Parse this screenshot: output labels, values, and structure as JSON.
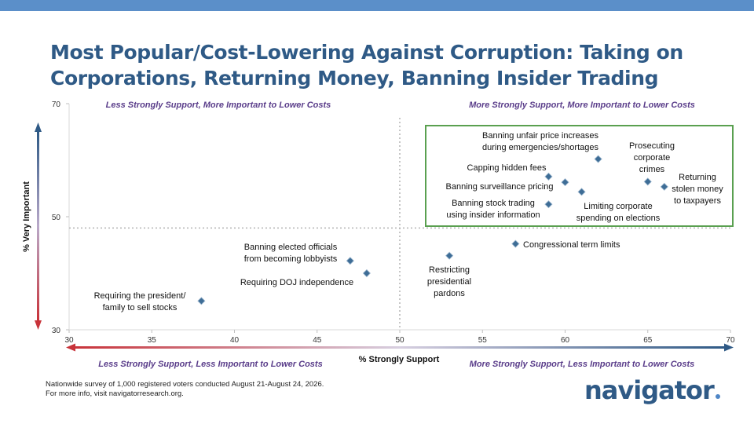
{
  "title_lines": [
    "Most Popular/Cost-Lowering Against Corruption: Taking on",
    "Corporations, Returning Money, Banning Insider Trading"
  ],
  "chart_data": {
    "type": "scatter",
    "xlabel": "% Strongly Support",
    "ylabel": "% Very Important",
    "xlim": [
      30,
      70
    ],
    "ylim": [
      30,
      70
    ],
    "xticks": [
      "30",
      "35",
      "40",
      "45",
      "50",
      "55",
      "60",
      "65",
      "70"
    ],
    "yticks": [
      "30",
      "50",
      "70"
    ],
    "reference_lines": {
      "x": 50,
      "y": 48
    },
    "quadrant_labels": {
      "top_left": "Less Strongly Support, More Important to Lower Costs",
      "top_right": "More Strongly Support, More Important to Lower Costs",
      "bottom_left": "Less Strongly Support, Less Important to Lower Costs",
      "bottom_right": "More Strongly Support, Less Important to Lower Costs"
    },
    "points": [
      {
        "label": [
          "Banning unfair price increases",
          "during emergencies/shortages"
        ],
        "x": 62,
        "y": 60.2
      },
      {
        "label": [
          "Prosecuting",
          "corporate",
          "crimes"
        ],
        "x": 65,
        "y": 56.2
      },
      {
        "label": [
          "Returning",
          "stolen money",
          "to taxpayers"
        ],
        "x": 66,
        "y": 55.3
      },
      {
        "label": [
          "Capping hidden fees"
        ],
        "x": 59,
        "y": 57.1
      },
      {
        "label": [
          "Banning surveillance pricing"
        ],
        "x": 60,
        "y": 56.1
      },
      {
        "label": [
          "Limiting corporate",
          "spending on elections"
        ],
        "x": 61,
        "y": 54.4
      },
      {
        "label": [
          "Banning stock trading",
          "using insider information"
        ],
        "x": 59,
        "y": 52.2
      },
      {
        "label": [
          "Congressional term limits"
        ],
        "x": 57,
        "y": 45.2
      },
      {
        "label": [
          "Restricting",
          "presidential",
          "pardons"
        ],
        "x": 53,
        "y": 43.1
      },
      {
        "label": [
          "Banning elected officials",
          "from becoming lobbyists"
        ],
        "x": 47,
        "y": 42.2
      },
      {
        "label": [
          "Requiring DOJ independence"
        ],
        "x": 48,
        "y": 40.0
      },
      {
        "label": [
          "Requiring the president/",
          "family to sell stocks"
        ],
        "x": 38,
        "y": 35.1
      }
    ],
    "colors": {
      "point": "#3e6d96",
      "highlight_box": "#5aa050",
      "top_labels": "#5a3d8a",
      "bottom_labels": "#5a3d8a",
      "arrow_top": "#2f5a86",
      "arrow_bottom": "#c8333a"
    }
  },
  "footnote_lines": [
    "Nationwide survey of 1,000 registered voters conducted August 21-August 24, 2026.",
    "For more info, visit navigatorresearch.org."
  ],
  "logo_text": "navigator"
}
